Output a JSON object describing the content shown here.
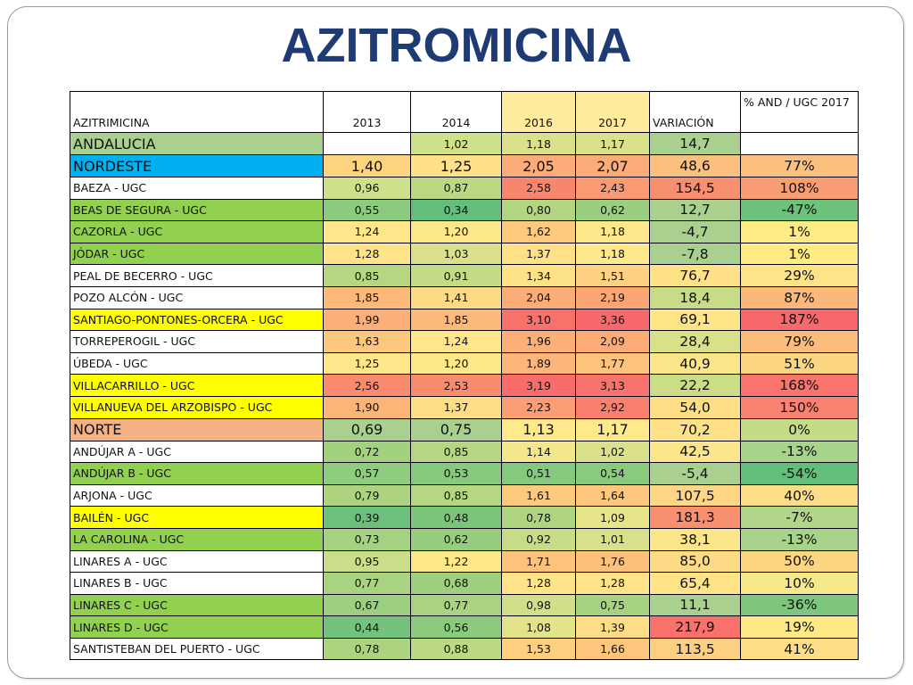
{
  "title": "AZITROMICINA",
  "headers": [
    "AZITRIMICINA",
    "2013",
    "2014",
    "2016",
    "2017",
    "VARIACIÓN",
    "% AND / UGC 2017"
  ],
  "rows": [
    {
      "name": "ANDALUCIA",
      "y2013": "",
      "y2014": "1,02",
      "y2016": "1,18",
      "y2017": "1,17",
      "var": "14,7",
      "pct": "",
      "kind": "region",
      "colors": {
        "name": "#a9d08e",
        "y2013": "#ffffff",
        "y2014": "#cfe08a",
        "y2016": "#d9e18b",
        "y2017": "#d9e18b",
        "var": "#a9d08e",
        "pct": "#ffffff"
      }
    },
    {
      "name": "NORDESTE",
      "y2013": "1,40",
      "y2014": "1,25",
      "y2016": "2,05",
      "y2017": "2,07",
      "var": "48,6",
      "pct": "77%",
      "kind": "region",
      "colors": {
        "name": "#00b0f0",
        "y2013": "#ffd480",
        "y2014": "#ffe189",
        "y2016": "#fbac78",
        "y2017": "#fbac78",
        "var": "#fbc07d",
        "pct": "#fbc07d"
      }
    },
    {
      "name": "BAEZA - UGC",
      "y2013": "0,96",
      "y2014": "0,87",
      "y2016": "2,58",
      "y2017": "2,43",
      "var": "154,5",
      "pct": "108%",
      "kind": "ugc",
      "colors": {
        "name": "#ffffff",
        "y2013": "#cfe08a",
        "y2014": "#bcd883",
        "y2016": "#f8866d",
        "y2017": "#f99a72",
        "var": "#f8906f",
        "pct": "#f99e73"
      }
    },
    {
      "name": "BEAS DE SEGURA - UGC",
      "y2013": "0,55",
      "y2014": "0,34",
      "y2016": "0,80",
      "y2017": "0,62",
      "var": "12,7",
      "pct": "-47%",
      "kind": "ugc",
      "colors": {
        "name": "#92d050",
        "y2013": "#8ccb7e",
        "y2014": "#63be7b",
        "y2016": "#b1d580",
        "y2017": "#99cf7e",
        "var": "#a9d08e",
        "pct": "#6cc17b"
      }
    },
    {
      "name": "CAZORLA - UGC",
      "y2013": "1,24",
      "y2014": "1,20",
      "y2016": "1,62",
      "y2017": "1,18",
      "var": "-4,7",
      "pct": "1%",
      "kind": "ugc",
      "colors": {
        "name": "#92d050",
        "y2013": "#ffe68a",
        "y2014": "#ffe88a",
        "y2016": "#fdc97d",
        "y2017": "#fde98b",
        "var": "#a9d08e",
        "pct": "#ffeb84"
      }
    },
    {
      "name": "JÓDAR - UGC",
      "y2013": "1,28",
      "y2014": "1,03",
      "y2016": "1,37",
      "y2017": "1,18",
      "var": "-7,8",
      "pct": "1%",
      "kind": "ugc",
      "colors": {
        "name": "#92d050",
        "y2013": "#ffe389",
        "y2014": "#dbe18a",
        "y2016": "#fee087",
        "y2017": "#fde98b",
        "var": "#a9d08e",
        "pct": "#ffeb84"
      }
    },
    {
      "name": "PEAL DE BECERRO - UGC",
      "y2013": "0,85",
      "y2014": "0,91",
      "y2016": "1,34",
      "y2017": "1,51",
      "var": "76,7",
      "pct": "29%",
      "kind": "ugc",
      "colors": {
        "name": "#ffffff",
        "y2013": "#b6d681",
        "y2014": "#c5dc86",
        "y2016": "#fee288",
        "y2017": "#fed282",
        "var": "#ffe187",
        "pct": "#ffe389"
      }
    },
    {
      "name": "POZO ALCÓN - UGC",
      "y2013": "1,85",
      "y2014": "1,41",
      "y2016": "2,04",
      "y2017": "2,19",
      "var": "18,4",
      "pct": "87%",
      "kind": "ugc",
      "colors": {
        "name": "#ffffff",
        "y2013": "#fdb979",
        "y2014": "#feda86",
        "y2016": "#fbad77",
        "y2017": "#faa775",
        "var": "#c8dc88",
        "pct": "#fbb878"
      }
    },
    {
      "name": "SANTIAGO-PONTONES-ORCERA - UGC",
      "y2013": "1,99",
      "y2014": "1,85",
      "y2016": "3,10",
      "y2017": "3,36",
      "var": "69,1",
      "pct": "187%",
      "kind": "ugc",
      "colors": {
        "name": "#ffff00",
        "y2013": "#fcb077",
        "y2014": "#fdb979",
        "y2016": "#f8716b",
        "y2017": "#f8696b",
        "var": "#ffe588",
        "pct": "#f8696b"
      }
    },
    {
      "name": "TORREPEROGIL - UGC",
      "y2013": "1,63",
      "y2014": "1,24",
      "y2016": "1,96",
      "y2017": "2,09",
      "var": "28,4",
      "pct": "79%",
      "kind": "ugc",
      "colors": {
        "name": "#ffffff",
        "y2013": "#fdc77d",
        "y2014": "#ffe68a",
        "y2016": "#fcb077",
        "y2017": "#fbab76",
        "var": "#d8e08a",
        "pct": "#fbbd7b"
      }
    },
    {
      "name": "ÚBEDA - UGC",
      "y2013": "1,25",
      "y2014": "1,20",
      "y2016": "1,89",
      "y2017": "1,77",
      "var": "40,9",
      "pct": "51%",
      "kind": "ugc",
      "colors": {
        "name": "#ffffff",
        "y2013": "#ffe68a",
        "y2014": "#ffe88a",
        "y2016": "#fcb679",
        "y2017": "#fdc27c",
        "var": "#fde589",
        "pct": "#fdd682"
      }
    },
    {
      "name": "VILLACARRILLO - UGC",
      "y2013": "2,56",
      "y2014": "2,53",
      "y2016": "3,19",
      "y2017": "3,13",
      "var": "22,2",
      "pct": "168%",
      "kind": "ugc",
      "colors": {
        "name": "#ffff00",
        "y2013": "#f98a6e",
        "y2014": "#f98c6f",
        "y2016": "#f86d6b",
        "y2017": "#f8736c",
        "var": "#ccdd88",
        "pct": "#f8746c"
      }
    },
    {
      "name": "VILLANUEVA DEL ARZOBISPO - UGC",
      "y2013": "1,90",
      "y2014": "1,37",
      "y2016": "2,23",
      "y2017": "2,92",
      "var": "54,0",
      "pct": "150%",
      "kind": "ugc",
      "colors": {
        "name": "#ffff00",
        "y2013": "#fcb578",
        "y2014": "#fedd87",
        "y2016": "#fb9e74",
        "y2017": "#f97f6e",
        "var": "#fedf88",
        "pct": "#f98270"
      }
    },
    {
      "name": "NORTE",
      "y2013": "0,69",
      "y2014": "0,75",
      "y2016": "1,13",
      "y2017": "1,17",
      "var": "70,2",
      "pct": "0%",
      "kind": "region",
      "colors": {
        "name": "#f4b183",
        "y2013": "#a9d08e",
        "y2014": "#a9d08e",
        "y2016": "#ffe98a",
        "y2017": "#ffe98a",
        "var": "#ffe187",
        "pct": "#c4db87"
      }
    },
    {
      "name": "ANDÚJAR A - UGC",
      "y2013": "0,72",
      "y2014": "0,85",
      "y2016": "1,14",
      "y2017": "1,02",
      "var": "42,5",
      "pct": "-13%",
      "kind": "ugc",
      "colors": {
        "name": "#ffffff",
        "y2013": "#a3d27f",
        "y2014": "#b6d681",
        "y2016": "#f2e88b",
        "y2017": "#dae18a",
        "var": "#fde589",
        "pct": "#a7d38a"
      }
    },
    {
      "name": "ANDÚJAR B - UGC",
      "y2013": "0,57",
      "y2014": "0,53",
      "y2016": "0,51",
      "y2017": "0,54",
      "var": "-5,4",
      "pct": "-54%",
      "kind": "ugc",
      "colors": {
        "name": "#92d050",
        "y2013": "#8ecc7e",
        "y2014": "#87ca7d",
        "y2016": "#84c97d",
        "y2017": "#89ca7d",
        "var": "#a9d08e",
        "pct": "#63be7b"
      }
    },
    {
      "name": "ARJONA - UGC",
      "y2013": "0,79",
      "y2014": "0,85",
      "y2016": "1,61",
      "y2017": "1,64",
      "var": "107,5",
      "pct": "40%",
      "kind": "ugc",
      "colors": {
        "name": "#ffffff",
        "y2013": "#add380",
        "y2014": "#b6d681",
        "y2016": "#fdca7d",
        "y2017": "#fdc77d",
        "var": "#fed684",
        "pct": "#fedd87"
      }
    },
    {
      "name": "BAILÉN - UGC",
      "y2013": "0,39",
      "y2014": "0,48",
      "y2016": "0,78",
      "y2017": "1,09",
      "var": "181,3",
      "pct": "-7%",
      "kind": "ugc",
      "colors": {
        "name": "#ffff00",
        "y2013": "#6cc07b",
        "y2014": "#7cc67c",
        "y2016": "#afd480",
        "y2017": "#e6e58a",
        "var": "#f8906f",
        "pct": "#b1d68a"
      }
    },
    {
      "name": "LA CAROLINA - UGC",
      "y2013": "0,73",
      "y2014": "0,62",
      "y2016": "0,92",
      "y2017": "1,01",
      "var": "38,1",
      "pct": "-13%",
      "kind": "ugc",
      "colors": {
        "name": "#92d050",
        "y2013": "#a4d27f",
        "y2014": "#97ce7e",
        "y2016": "#c7dc86",
        "y2017": "#d8e08a",
        "var": "#fde589",
        "pct": "#a7d38a"
      }
    },
    {
      "name": "LINARES A - UGC",
      "y2013": "0,95",
      "y2014": "1,22",
      "y2016": "1,71",
      "y2017": "1,76",
      "var": "85,0",
      "pct": "50%",
      "kind": "ugc",
      "colors": {
        "name": "#ffffff",
        "y2013": "#cadd88",
        "y2014": "#ffe78a",
        "y2016": "#fdc37c",
        "y2017": "#fdc17c",
        "var": "#fedc87",
        "pct": "#fdd682"
      }
    },
    {
      "name": "LINARES B - UGC",
      "y2013": "0,77",
      "y2014": "0,68",
      "y2016": "1,28",
      "y2017": "1,28",
      "var": "65,4",
      "pct": "10%",
      "kind": "ugc",
      "colors": {
        "name": "#ffffff",
        "y2013": "#aad381",
        "y2014": "#9fd07f",
        "y2016": "#ffe389",
        "y2017": "#ffe389",
        "var": "#ffe588",
        "pct": "#f5e98a"
      }
    },
    {
      "name": "LINARES C - UGC",
      "y2013": "0,67",
      "y2014": "0,77",
      "y2016": "0,98",
      "y2017": "0,75",
      "var": "11,1",
      "pct": "-36%",
      "kind": "ugc",
      "colors": {
        "name": "#92d050",
        "y2013": "#9ccf7f",
        "y2014": "#aad381",
        "y2016": "#d0df88",
        "y2017": "#a7d280",
        "var": "#a9d08e",
        "pct": "#7ec67d"
      }
    },
    {
      "name": "LINARES D - UGC",
      "y2013": "0,44",
      "y2014": "0,56",
      "y2016": "1,08",
      "y2017": "1,39",
      "var": "217,9",
      "pct": "19%",
      "kind": "ugc",
      "colors": {
        "name": "#92d050",
        "y2013": "#74c37c",
        "y2014": "#8ccb7e",
        "y2016": "#e3e48a",
        "y2017": "#fddd87",
        "var": "#f8716b",
        "pct": "#ffe985"
      }
    },
    {
      "name": "SANTISTEBAN DEL PUERTO - UGC",
      "y2013": "0,78",
      "y2014": "0,88",
      "y2016": "1,53",
      "y2017": "1,66",
      "var": "113,5",
      "pct": "41%",
      "kind": "ugc",
      "colors": {
        "name": "#ffffff",
        "y2013": "#acd480",
        "y2014": "#bdd983",
        "y2016": "#fdcf7f",
        "y2017": "#fdc67c",
        "var": "#fdcf80",
        "pct": "#fedd87"
      }
    }
  ],
  "header_colors": {
    "y2013": "#ffffff",
    "y2014": "#ffffff",
    "y2016": "#ffeb9c",
    "y2017": "#ffeb9c",
    "var": "#ffffff",
    "pct": "#ffffff"
  }
}
